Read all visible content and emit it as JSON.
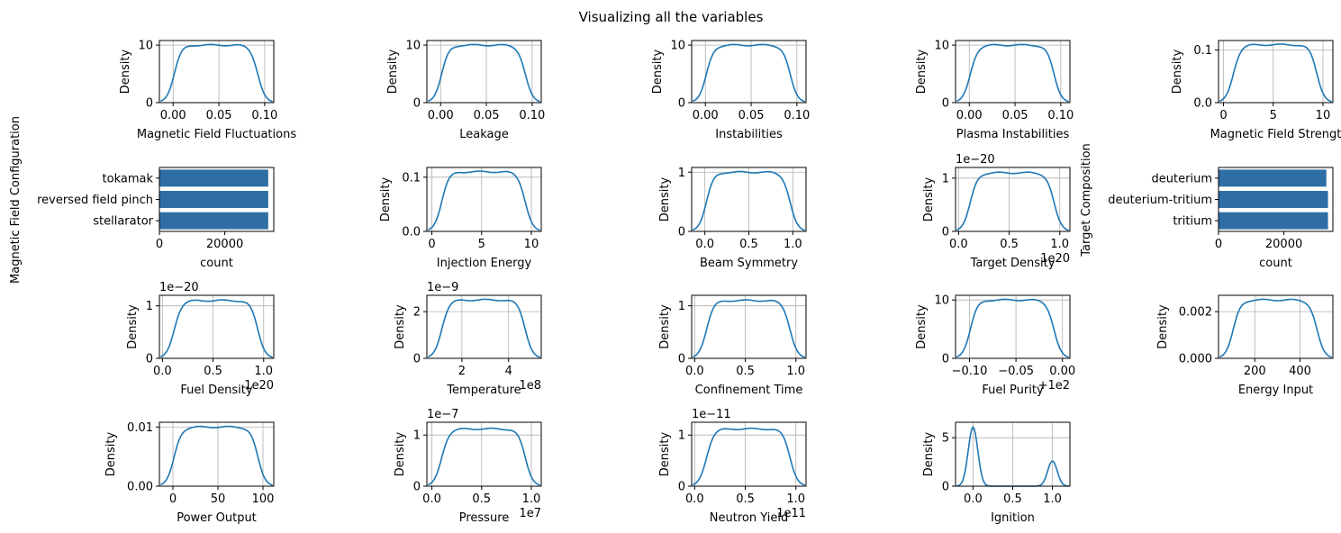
{
  "title": "Visualizing all the variables",
  "colors": {
    "line": "#1f77b4",
    "bar": "#2f6ea5",
    "grid": "#b0b0b0"
  },
  "chart_data": [
    {
      "type": "line",
      "xlabel": "Magnetic Field Fluctuations",
      "ylabel": "Density",
      "xlim": [
        -0.015,
        0.11
      ],
      "ylim": [
        0,
        10.8
      ],
      "xticks": [
        0,
        0.05,
        0.1
      ],
      "xtick_labels": [
        "0.00",
        "0.05",
        "0.10"
      ],
      "yticks": [
        0,
        10
      ],
      "ytick_labels": [
        "0",
        "10"
      ],
      "shape": "plateau",
      "plateau": 10.0
    },
    {
      "type": "line",
      "xlabel": "Leakage",
      "ylabel": "Density",
      "xlim": [
        -0.015,
        0.11
      ],
      "ylim": [
        0,
        10.8
      ],
      "xticks": [
        0,
        0.05,
        0.1
      ],
      "xtick_labels": [
        "0.00",
        "0.05",
        "0.10"
      ],
      "yticks": [
        0,
        10
      ],
      "ytick_labels": [
        "0",
        "10"
      ],
      "shape": "plateau",
      "plateau": 10.0
    },
    {
      "type": "line",
      "xlabel": "Instabilities",
      "ylabel": "Density",
      "xlim": [
        -0.015,
        0.11
      ],
      "ylim": [
        0,
        10.8
      ],
      "xticks": [
        0,
        0.05,
        0.1
      ],
      "xtick_labels": [
        "0.00",
        "0.05",
        "0.10"
      ],
      "yticks": [
        0,
        10
      ],
      "ytick_labels": [
        "0",
        "10"
      ],
      "shape": "plateau",
      "plateau": 10.0
    },
    {
      "type": "line",
      "xlabel": "Plasma Instabilities",
      "ylabel": "Density",
      "xlim": [
        -0.015,
        0.11
      ],
      "ylim": [
        0,
        10.8
      ],
      "xticks": [
        0,
        0.05,
        0.1
      ],
      "xtick_labels": [
        "0.00",
        "0.05",
        "0.10"
      ],
      "yticks": [
        0,
        10
      ],
      "ytick_labels": [
        "0",
        "10"
      ],
      "shape": "plateau",
      "plateau": 10.0
    },
    {
      "type": "line",
      "xlabel": "Magnetic Field Strengt",
      "ylabel": "Density",
      "xlim": [
        -0.5,
        11
      ],
      "ylim": [
        0,
        0.118
      ],
      "xticks": [
        0,
        5,
        10
      ],
      "xtick_labels": [
        "0",
        "5",
        "10"
      ],
      "yticks": [
        0,
        0.1
      ],
      "ytick_labels": [
        "0.0",
        "0.1"
      ],
      "shape": "plateau",
      "plateau": 0.11
    },
    {
      "type": "bar",
      "orientation": "horizontal",
      "xlabel": "count",
      "ylabel": "Magnetic Field Configuration",
      "categories": [
        "tokamak",
        "reversed field pinch",
        "stellarator"
      ],
      "values": [
        33300,
        33300,
        33300
      ],
      "xlim": [
        0,
        35000
      ],
      "xticks": [
        0,
        20000
      ],
      "xtick_labels": [
        "0",
        "20000"
      ]
    },
    {
      "type": "line",
      "xlabel": "Injection Energy",
      "ylabel": "Density",
      "xlim": [
        -0.5,
        11
      ],
      "ylim": [
        0,
        0.118
      ],
      "xticks": [
        0,
        5,
        10
      ],
      "xtick_labels": [
        "0",
        "5",
        "10"
      ],
      "yticks": [
        0,
        0.1
      ],
      "ytick_labels": [
        "0.0",
        "0.1"
      ],
      "shape": "plateau",
      "plateau": 0.11
    },
    {
      "type": "line",
      "xlabel": "Beam Symmetry",
      "ylabel": "Density",
      "xlim": [
        -0.15,
        1.15
      ],
      "ylim": [
        0,
        1.08
      ],
      "xticks": [
        0,
        0.5,
        1
      ],
      "xtick_labels": [
        "0.0",
        "0.5",
        "1.0"
      ],
      "yticks": [
        0,
        1
      ],
      "ytick_labels": [
        "0",
        "1"
      ],
      "shape": "plateau",
      "plateau": 1.0
    },
    {
      "type": "line",
      "xlabel": "Target Density",
      "ylabel": "Density",
      "xlim": [
        -0.03,
        1.1
      ],
      "ylim": [
        0,
        1.2
      ],
      "xticks": [
        0,
        0.5,
        1
      ],
      "xtick_labels": [
        "0.0",
        "0.5",
        "1.0"
      ],
      "yticks": [
        0,
        1
      ],
      "ytick_labels": [
        "0",
        "1"
      ],
      "x_offset_text": "1e20",
      "y_offset_text": "1e−20",
      "shape": "plateau",
      "plateau": 1.1
    },
    {
      "type": "bar",
      "orientation": "horizontal",
      "xlabel": "count",
      "ylabel": "Target Composition",
      "categories": [
        "deuterium",
        "deuterium-tritium",
        "tritium"
      ],
      "values": [
        33000,
        33500,
        33500
      ],
      "xlim": [
        0,
        35000
      ],
      "xticks": [
        0,
        20000
      ],
      "xtick_labels": [
        "0",
        "20000"
      ]
    },
    {
      "type": "line",
      "xlabel": "Fuel Density",
      "ylabel": "Density",
      "xlim": [
        -0.03,
        1.1
      ],
      "ylim": [
        0,
        1.2
      ],
      "xticks": [
        0,
        0.5,
        1
      ],
      "xtick_labels": [
        "0.0",
        "0.5",
        "1.0"
      ],
      "yticks": [
        0,
        1
      ],
      "ytick_labels": [
        "0",
        "1"
      ],
      "x_offset_text": "1e20",
      "y_offset_text": "1e−20",
      "shape": "plateau",
      "plateau": 1.1
    },
    {
      "type": "line",
      "xlabel": "Temperature",
      "ylabel": "Density",
      "xlim": [
        0.5,
        5.4
      ],
      "ylim": [
        0,
        2.7
      ],
      "xticks": [
        2,
        4
      ],
      "xtick_labels": [
        "2",
        "4"
      ],
      "yticks": [
        0,
        2
      ],
      "ytick_labels": [
        "0",
        "2"
      ],
      "x_offset_text": "1e8",
      "y_offset_text": "1e−9",
      "shape": "plateau",
      "plateau": 2.5
    },
    {
      "type": "line",
      "xlabel": "Confinement Time",
      "ylabel": "Density",
      "xlim": [
        -0.03,
        1.1
      ],
      "ylim": [
        0,
        1.2
      ],
      "xticks": [
        0,
        0.5,
        1
      ],
      "xtick_labels": [
        "0.0",
        "0.5",
        "1.0"
      ],
      "yticks": [
        0,
        1
      ],
      "ytick_labels": [
        "0",
        "1"
      ],
      "shape": "plateau",
      "plateau": 1.1
    },
    {
      "type": "line",
      "xlabel": "Fuel Purity",
      "ylabel": "Density",
      "xlim": [
        -0.115,
        0.008
      ],
      "ylim": [
        0,
        10.8
      ],
      "xticks": [
        -0.1,
        -0.05,
        0
      ],
      "xtick_labels": [
        "−0.10",
        "−0.05",
        "0.00"
      ],
      "yticks": [
        0,
        10
      ],
      "ytick_labels": [
        "0",
        "10"
      ],
      "x_offset_text": "+1e2",
      "shape": "plateau",
      "plateau": 10.0
    },
    {
      "type": "line",
      "xlabel": "Energy Input",
      "ylabel": "Density",
      "xlim": [
        40,
        545
      ],
      "ylim": [
        0,
        0.0027
      ],
      "xticks": [
        200,
        400
      ],
      "xtick_labels": [
        "200",
        "400"
      ],
      "yticks": [
        0,
        0.002
      ],
      "ytick_labels": [
        "0.000",
        "0.002"
      ],
      "shape": "plateau",
      "plateau": 0.0025
    },
    {
      "type": "line",
      "xlabel": "Power Output",
      "ylabel": "Density",
      "xlim": [
        -15,
        112
      ],
      "ylim": [
        0,
        0.0108
      ],
      "xticks": [
        0,
        50,
        100
      ],
      "xtick_labels": [
        "0",
        "50",
        "100"
      ],
      "yticks": [
        0,
        0.01
      ],
      "ytick_labels": [
        "0.00",
        "0.01"
      ],
      "shape": "plateau",
      "plateau": 0.01
    },
    {
      "type": "line",
      "xlabel": "Pressure",
      "ylabel": "Density",
      "xlim": [
        -0.05,
        1.1
      ],
      "ylim": [
        0,
        1.25
      ],
      "xticks": [
        0,
        0.5,
        1
      ],
      "xtick_labels": [
        "0.0",
        "0.5",
        "1.0"
      ],
      "yticks": [
        0,
        1
      ],
      "ytick_labels": [
        "0",
        "1"
      ],
      "x_offset_text": "1e7",
      "y_offset_text": "1e−7",
      "shape": "plateau",
      "plateau": 1.12
    },
    {
      "type": "line",
      "xlabel": "Neutron Yield",
      "ylabel": "Density",
      "xlim": [
        -0.03,
        1.1
      ],
      "ylim": [
        0,
        1.25
      ],
      "xticks": [
        0,
        0.5,
        1
      ],
      "xtick_labels": [
        "0.0",
        "0.5",
        "1.0"
      ],
      "yticks": [
        0,
        1
      ],
      "ytick_labels": [
        "0",
        "1"
      ],
      "x_offset_text": "1e11",
      "y_offset_text": "1e−11",
      "shape": "plateau",
      "plateau": 1.12
    },
    {
      "type": "line",
      "xlabel": "Ignition",
      "ylabel": "Density",
      "xlim": [
        -0.22,
        1.22
      ],
      "ylim": [
        0,
        6.6
      ],
      "xticks": [
        0,
        0.5,
        1
      ],
      "xtick_labels": [
        "0.0",
        "0.5",
        "1.0"
      ],
      "yticks": [
        0,
        5
      ],
      "ytick_labels": [
        "0",
        "5"
      ],
      "shape": "bimodal",
      "peaks": [
        [
          0,
          6.1
        ],
        [
          1,
          2.6
        ]
      ]
    }
  ]
}
